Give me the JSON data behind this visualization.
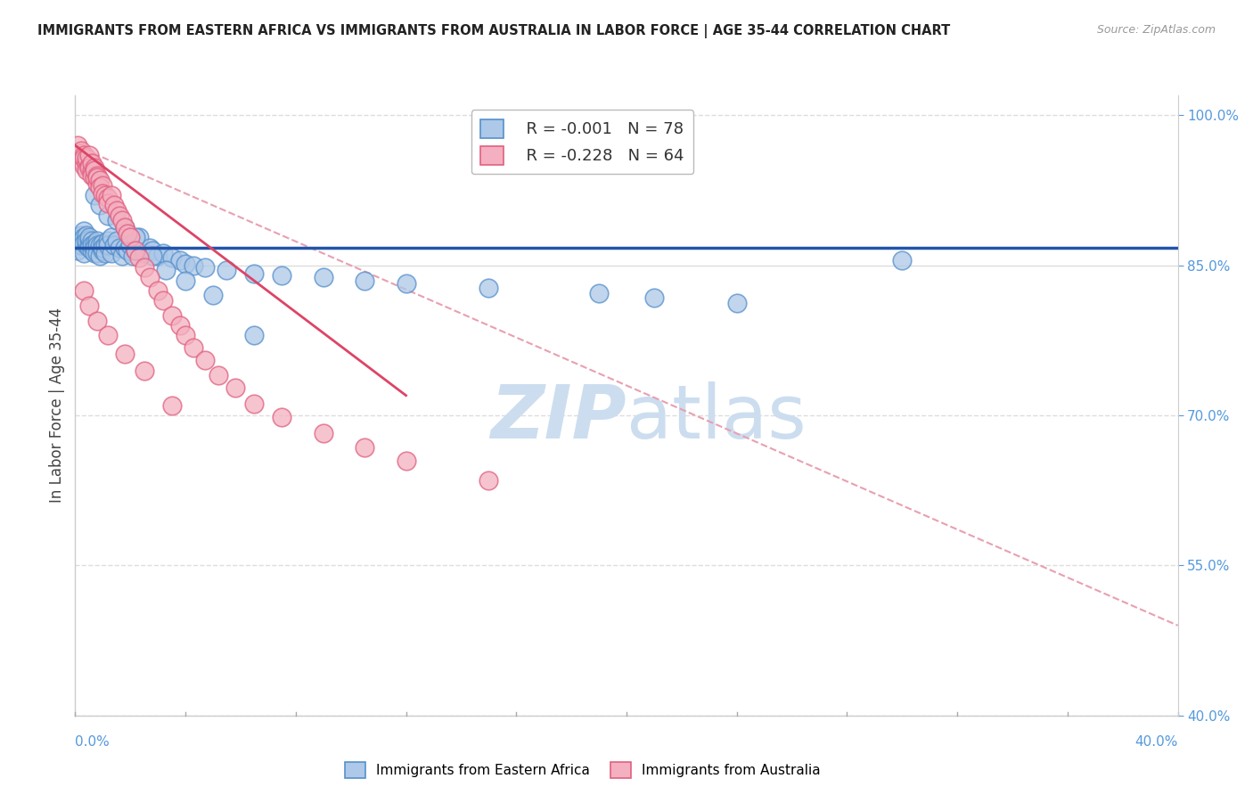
{
  "title": "IMMIGRANTS FROM EASTERN AFRICA VS IMMIGRANTS FROM AUSTRALIA IN LABOR FORCE | AGE 35-44 CORRELATION CHART",
  "source": "Source: ZipAtlas.com",
  "ylabel_label": "In Labor Force | Age 35-44",
  "xlim": [
    0.0,
    0.4
  ],
  "ylim": [
    0.4,
    1.02
  ],
  "blue_R": -0.001,
  "blue_N": 78,
  "pink_R": -0.228,
  "pink_N": 64,
  "blue_color": "#adc8e8",
  "blue_edge_color": "#5590cc",
  "pink_color": "#f4b0c0",
  "pink_edge_color": "#e06080",
  "dashed_line_color": "#e8a0b0",
  "blue_line_color": "#2255aa",
  "pink_line_color": "#dd4466",
  "watermark_text_color": "#ccddef",
  "background_color": "#ffffff",
  "grid_color": "#dddddd",
  "right_axis_color": "#5599dd",
  "bottom_axis_color": "#5599dd",
  "y_tick_labels": [
    1.0,
    0.85,
    0.7,
    0.55,
    0.4
  ],
  "blue_scatter_x": [
    0.001,
    0.001,
    0.002,
    0.002,
    0.002,
    0.003,
    0.003,
    0.003,
    0.003,
    0.004,
    0.004,
    0.004,
    0.005,
    0.005,
    0.005,
    0.005,
    0.006,
    0.006,
    0.006,
    0.007,
    0.007,
    0.007,
    0.008,
    0.008,
    0.008,
    0.009,
    0.009,
    0.01,
    0.01,
    0.01,
    0.011,
    0.011,
    0.012,
    0.012,
    0.013,
    0.013,
    0.014,
    0.015,
    0.016,
    0.017,
    0.018,
    0.019,
    0.02,
    0.021,
    0.022,
    0.023,
    0.025,
    0.027,
    0.028,
    0.03,
    0.032,
    0.035,
    0.038,
    0.04,
    0.043,
    0.047,
    0.055,
    0.065,
    0.075,
    0.09,
    0.105,
    0.12,
    0.15,
    0.19,
    0.21,
    0.24,
    0.007,
    0.009,
    0.012,
    0.015,
    0.018,
    0.022,
    0.028,
    0.033,
    0.04,
    0.05,
    0.065,
    0.3
  ],
  "blue_scatter_y": [
    0.87,
    0.865,
    0.88,
    0.87,
    0.875,
    0.885,
    0.878,
    0.872,
    0.862,
    0.88,
    0.87,
    0.875,
    0.876,
    0.87,
    0.868,
    0.878,
    0.875,
    0.865,
    0.87,
    0.872,
    0.868,
    0.862,
    0.875,
    0.87,
    0.862,
    0.87,
    0.86,
    0.872,
    0.865,
    0.868,
    0.87,
    0.862,
    0.875,
    0.87,
    0.878,
    0.862,
    0.87,
    0.875,
    0.868,
    0.86,
    0.868,
    0.865,
    0.87,
    0.86,
    0.865,
    0.878,
    0.862,
    0.868,
    0.865,
    0.86,
    0.862,
    0.858,
    0.855,
    0.852,
    0.85,
    0.848,
    0.845,
    0.842,
    0.84,
    0.838,
    0.835,
    0.832,
    0.828,
    0.822,
    0.818,
    0.812,
    0.92,
    0.91,
    0.9,
    0.895,
    0.888,
    0.878,
    0.86,
    0.845,
    0.835,
    0.82,
    0.78,
    0.855
  ],
  "pink_scatter_x": [
    0.001,
    0.001,
    0.002,
    0.002,
    0.002,
    0.003,
    0.003,
    0.003,
    0.004,
    0.004,
    0.004,
    0.005,
    0.005,
    0.005,
    0.006,
    0.006,
    0.006,
    0.007,
    0.007,
    0.007,
    0.008,
    0.008,
    0.008,
    0.009,
    0.009,
    0.01,
    0.01,
    0.011,
    0.012,
    0.012,
    0.013,
    0.014,
    0.015,
    0.016,
    0.017,
    0.018,
    0.019,
    0.02,
    0.022,
    0.023,
    0.025,
    0.027,
    0.03,
    0.032,
    0.035,
    0.038,
    0.04,
    0.043,
    0.047,
    0.052,
    0.058,
    0.065,
    0.075,
    0.09,
    0.105,
    0.12,
    0.15,
    0.003,
    0.005,
    0.008,
    0.012,
    0.018,
    0.025,
    0.035
  ],
  "pink_scatter_y": [
    0.97,
    0.958,
    0.962,
    0.955,
    0.965,
    0.96,
    0.95,
    0.958,
    0.952,
    0.945,
    0.958,
    0.95,
    0.96,
    0.948,
    0.945,
    0.952,
    0.94,
    0.948,
    0.938,
    0.945,
    0.94,
    0.932,
    0.938,
    0.935,
    0.928,
    0.93,
    0.922,
    0.92,
    0.918,
    0.912,
    0.92,
    0.91,
    0.905,
    0.9,
    0.895,
    0.888,
    0.882,
    0.878,
    0.865,
    0.858,
    0.848,
    0.838,
    0.825,
    0.815,
    0.8,
    0.79,
    0.78,
    0.768,
    0.755,
    0.74,
    0.728,
    0.712,
    0.698,
    0.682,
    0.668,
    0.655,
    0.635,
    0.825,
    0.81,
    0.795,
    0.78,
    0.762,
    0.745,
    0.71
  ],
  "blue_trend_x": [
    0.0,
    0.4
  ],
  "blue_trend_y": [
    0.868,
    0.868
  ],
  "pink_trend_x": [
    0.0,
    0.12
  ],
  "pink_trend_y": [
    0.97,
    0.72
  ],
  "dashed_trend_x": [
    0.0,
    0.4
  ],
  "dashed_trend_y": [
    0.97,
    0.49
  ]
}
